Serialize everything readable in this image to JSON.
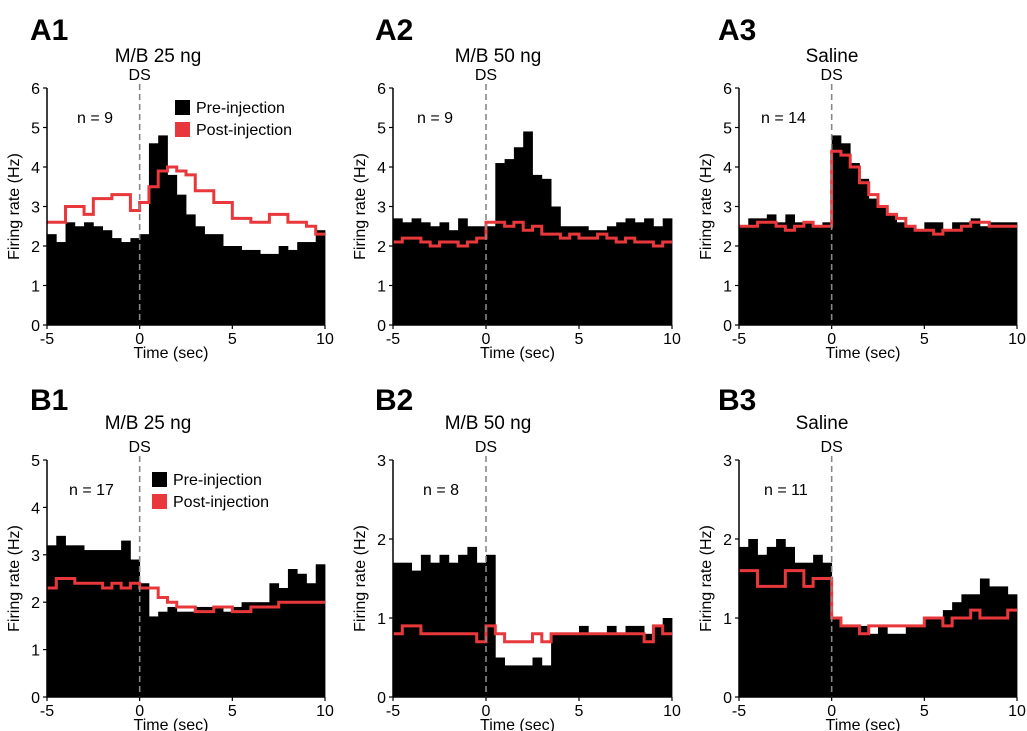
{
  "legend": {
    "pre": "Pre-injection",
    "post": "Post-injection"
  },
  "colors": {
    "pre": "#000000",
    "post": "#e8383b",
    "ds_line": "#888888"
  },
  "chart_data": [
    {
      "type": "area",
      "panel": "A1",
      "title": "M/B 25 ng",
      "marker": "DS",
      "n": "n = 9",
      "xlabel": "Time (sec)",
      "ylabel": "Firing rate (Hz)",
      "xlim": [
        -5,
        10
      ],
      "ylim": [
        0,
        6
      ],
      "yticks": [
        0,
        1,
        2,
        3,
        4,
        5,
        6
      ],
      "xticks": [
        -5,
        0,
        5,
        10
      ],
      "legend": true,
      "legend_position": "top-right",
      "bin_width": 0.5,
      "pre": [
        2.3,
        2.1,
        2.6,
        2.5,
        2.6,
        2.5,
        2.4,
        2.2,
        2.1,
        2.2,
        2.3,
        4.6,
        4.8,
        3.8,
        3.3,
        2.8,
        2.5,
        2.3,
        2.3,
        2.0,
        2.0,
        1.9,
        1.9,
        1.8,
        1.8,
        2.0,
        1.9,
        2.1,
        2.1,
        2.4
      ],
      "post": [
        2.6,
        2.6,
        3.0,
        3.0,
        2.8,
        3.2,
        3.2,
        3.3,
        3.3,
        2.9,
        3.1,
        3.5,
        3.9,
        4.0,
        3.9,
        3.8,
        3.4,
        3.4,
        3.1,
        3.1,
        2.7,
        2.7,
        2.6,
        2.6,
        2.8,
        2.8,
        2.6,
        2.6,
        2.5,
        2.3
      ]
    },
    {
      "type": "area",
      "panel": "A2",
      "title": "M/B 50 ng",
      "marker": "DS",
      "n": "n = 9",
      "xlabel": "Time (sec)",
      "ylabel": "Firing rate (Hz)",
      "xlim": [
        -5,
        10
      ],
      "ylim": [
        0,
        6
      ],
      "yticks": [
        0,
        1,
        2,
        3,
        4,
        5,
        6
      ],
      "xticks": [
        -5,
        0,
        5,
        10
      ],
      "legend": false,
      "bin_width": 0.5,
      "pre": [
        2.7,
        2.6,
        2.7,
        2.6,
        2.5,
        2.6,
        2.4,
        2.7,
        2.5,
        2.5,
        2.5,
        4.1,
        4.2,
        4.5,
        4.9,
        3.8,
        3.7,
        3.0,
        2.5,
        2.5,
        2.5,
        2.4,
        2.4,
        2.5,
        2.6,
        2.7,
        2.6,
        2.7,
        2.5,
        2.7
      ],
      "post": [
        2.1,
        2.2,
        2.2,
        2.1,
        2.0,
        2.1,
        2.1,
        2.0,
        2.1,
        2.2,
        2.6,
        2.6,
        2.5,
        2.6,
        2.4,
        2.5,
        2.3,
        2.3,
        2.2,
        2.3,
        2.2,
        2.2,
        2.3,
        2.2,
        2.1,
        2.2,
        2.1,
        2.1,
        2.0,
        2.1
      ]
    },
    {
      "type": "area",
      "panel": "A3",
      "title": "Saline",
      "marker": "DS",
      "n": "n = 14",
      "xlabel": "Time (sec)",
      "ylabel": "Firing rate (Hz)",
      "xlim": [
        -5,
        10
      ],
      "ylim": [
        0,
        6
      ],
      "yticks": [
        0,
        1,
        2,
        3,
        4,
        5,
        6
      ],
      "xticks": [
        -5,
        0,
        5,
        10
      ],
      "legend": false,
      "bin_width": 0.5,
      "pre": [
        2.5,
        2.7,
        2.7,
        2.8,
        2.6,
        2.8,
        2.6,
        2.6,
        2.5,
        2.6,
        4.8,
        4.6,
        4.1,
        3.7,
        3.2,
        3.0,
        2.8,
        2.6,
        2.5,
        2.4,
        2.6,
        2.6,
        2.4,
        2.6,
        2.6,
        2.7,
        2.5,
        2.6,
        2.6,
        2.6
      ],
      "post": [
        2.5,
        2.5,
        2.6,
        2.6,
        2.5,
        2.4,
        2.5,
        2.6,
        2.5,
        2.5,
        4.4,
        4.3,
        4.0,
        3.6,
        3.3,
        3.0,
        2.8,
        2.7,
        2.5,
        2.4,
        2.4,
        2.3,
        2.4,
        2.4,
        2.5,
        2.6,
        2.6,
        2.5,
        2.5,
        2.5
      ]
    },
    {
      "type": "area",
      "panel": "B1",
      "title": "M/B 25 ng",
      "marker": "DS",
      "n": "n = 17",
      "xlabel": "Time (sec)",
      "ylabel": "Firing rate (Hz)",
      "xlim": [
        -5,
        10
      ],
      "ylim": [
        0,
        5
      ],
      "yticks": [
        0,
        1,
        2,
        3,
        4,
        5
      ],
      "xticks": [
        -5,
        0,
        5,
        10
      ],
      "legend": true,
      "legend_position": "top-right",
      "bin_width": 0.5,
      "pre": [
        3.2,
        3.4,
        3.2,
        3.2,
        3.1,
        3.1,
        3.1,
        3.1,
        3.3,
        2.9,
        2.4,
        1.7,
        1.8,
        1.9,
        1.8,
        1.8,
        1.9,
        1.9,
        1.9,
        1.8,
        1.9,
        2.0,
        2.0,
        2.0,
        2.4,
        2.3,
        2.7,
        2.6,
        2.4,
        2.8
      ],
      "post": [
        2.3,
        2.5,
        2.5,
        2.4,
        2.4,
        2.4,
        2.3,
        2.4,
        2.3,
        2.4,
        2.3,
        2.3,
        2.1,
        2.0,
        1.9,
        1.9,
        1.8,
        1.8,
        1.9,
        1.9,
        1.8,
        1.8,
        1.9,
        1.9,
        1.9,
        2.0,
        2.0,
        2.0,
        2.0,
        2.0
      ]
    },
    {
      "type": "area",
      "panel": "B2",
      "title": "M/B 50 ng",
      "marker": "DS",
      "n": "n = 8",
      "xlabel": "Time (sec)",
      "ylabel": "Firing rate (Hz)",
      "xlim": [
        -5,
        10
      ],
      "ylim": [
        0,
        3
      ],
      "yticks": [
        0,
        1,
        2,
        3
      ],
      "xticks": [
        -5,
        0,
        5,
        10
      ],
      "legend": false,
      "bin_width": 0.5,
      "pre": [
        1.7,
        1.7,
        1.6,
        1.8,
        1.7,
        1.8,
        1.7,
        1.8,
        1.9,
        1.7,
        1.8,
        0.5,
        0.4,
        0.4,
        0.4,
        0.5,
        0.4,
        0.8,
        0.8,
        0.8,
        0.9,
        0.8,
        0.8,
        0.9,
        0.8,
        0.9,
        0.9,
        0.8,
        0.9,
        1.0
      ],
      "post": [
        0.8,
        0.9,
        0.9,
        0.8,
        0.8,
        0.8,
        0.8,
        0.8,
        0.8,
        0.7,
        0.9,
        0.8,
        0.7,
        0.7,
        0.7,
        0.8,
        0.7,
        0.8,
        0.8,
        0.8,
        0.8,
        0.8,
        0.8,
        0.8,
        0.8,
        0.8,
        0.8,
        0.7,
        0.9,
        0.8
      ]
    },
    {
      "type": "area",
      "panel": "B3",
      "title": "Saline",
      "marker": "DS",
      "n": "n = 11",
      "xlabel": "Time (sec)",
      "ylabel": "Firing rate (Hz)",
      "xlim": [
        -5,
        10
      ],
      "ylim": [
        0,
        3
      ],
      "yticks": [
        0,
        1,
        2,
        3
      ],
      "xticks": [
        -5,
        0,
        5,
        10
      ],
      "legend": false,
      "bin_width": 0.5,
      "pre": [
        1.9,
        2.0,
        1.8,
        1.9,
        2.0,
        1.9,
        1.7,
        1.7,
        1.8,
        1.7,
        1.0,
        0.9,
        0.9,
        0.9,
        0.8,
        0.9,
        0.8,
        0.8,
        0.9,
        0.9,
        1.0,
        1.0,
        1.1,
        1.2,
        1.3,
        1.3,
        1.5,
        1.4,
        1.4,
        1.3
      ],
      "post": [
        1.6,
        1.6,
        1.4,
        1.4,
        1.4,
        1.6,
        1.6,
        1.4,
        1.5,
        1.5,
        1.0,
        0.9,
        0.9,
        0.8,
        0.9,
        0.9,
        0.9,
        0.9,
        0.9,
        0.9,
        1.0,
        1.0,
        0.9,
        1.0,
        1.0,
        1.1,
        1.0,
        1.0,
        1.0,
        1.1
      ]
    }
  ]
}
